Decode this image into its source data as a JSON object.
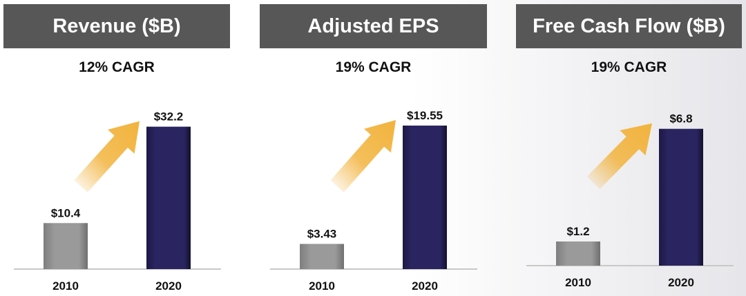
{
  "colors": {
    "title_bg": "#575757",
    "bar_2010": "#9a9a9a",
    "bar_2020": "#2a2560",
    "arrow": "#f2b33d",
    "baseline": "#c8c8c8"
  },
  "chart_data": [
    {
      "type": "bar",
      "title": "Revenue ($B)",
      "subtitle": "12% CAGR",
      "categories": [
        "2010",
        "2020"
      ],
      "values": [
        10.4,
        32.2
      ],
      "data_labels": [
        "$10.4",
        "$32.2"
      ],
      "ylim": [
        0,
        39
      ],
      "annotation": "growth-arrow"
    },
    {
      "type": "bar",
      "title": "Adjusted EPS",
      "subtitle": "19% CAGR",
      "categories": [
        "2010",
        "2020"
      ],
      "values": [
        3.43,
        19.55
      ],
      "data_labels": [
        "$3.43",
        "$19.55"
      ],
      "ylim": [
        0,
        23.5
      ],
      "annotation": "growth-arrow"
    },
    {
      "type": "bar",
      "title": "Free Cash Flow ($B)",
      "subtitle": "19% CAGR",
      "categories": [
        "2010",
        "2020"
      ],
      "values": [
        1.2,
        6.8
      ],
      "data_labels": [
        "$1.2",
        "$6.8"
      ],
      "ylim": [
        0,
        8.4
      ],
      "annotation": "growth-arrow"
    }
  ]
}
